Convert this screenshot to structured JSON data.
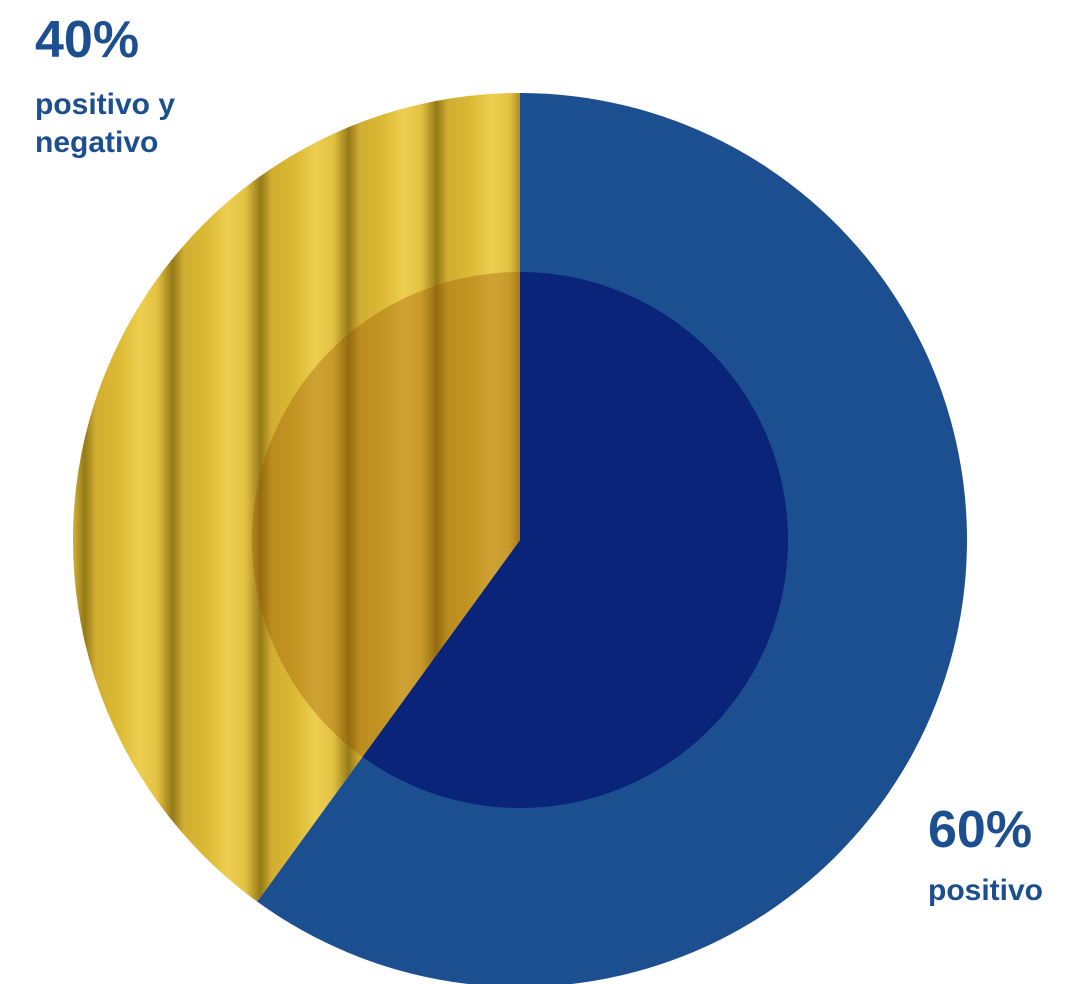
{
  "chart_data": {
    "type": "pie",
    "categories": [
      "positivo",
      "positivo y negativo"
    ],
    "values": [
      60,
      40
    ],
    "value_labels": [
      "60%",
      "40%"
    ],
    "colors": [
      "#1c4f90",
      "#e2c03f"
    ]
  }
}
